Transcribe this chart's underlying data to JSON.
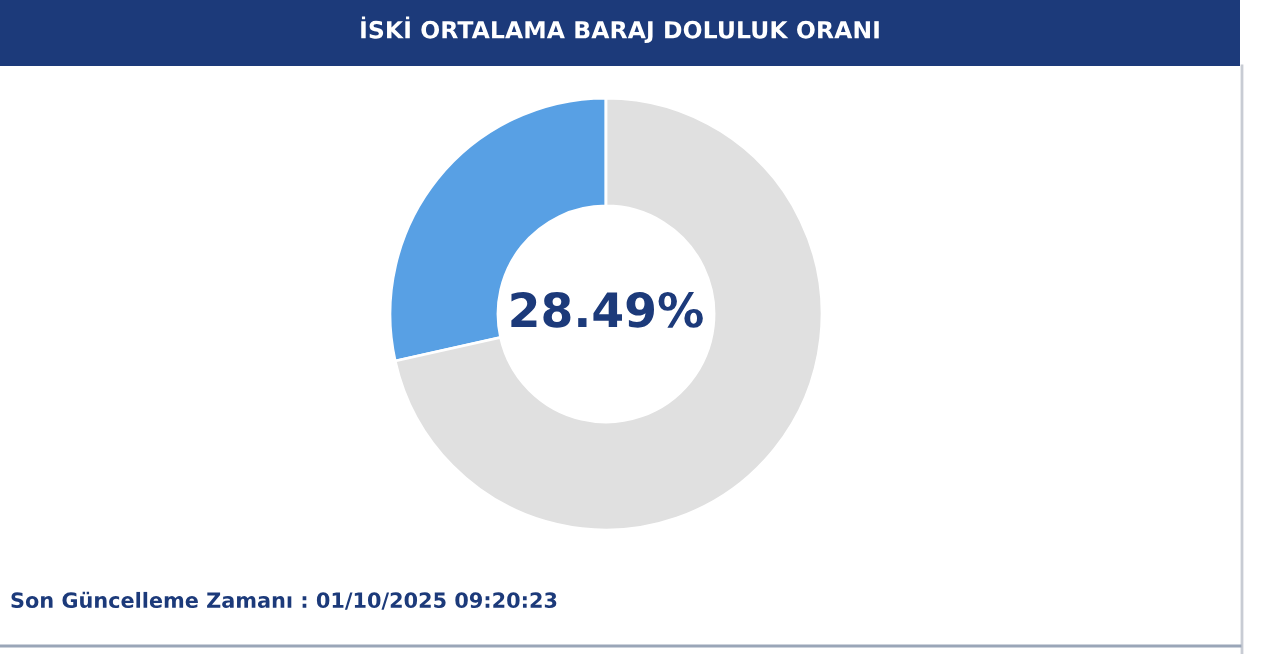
{
  "chart_data": {
    "type": "donut",
    "title": "İSKİ ORTALAMA BARAJ DOLULUK ORANI",
    "categories": [
      null,
      null
    ],
    "values": [
      28.49,
      71.51
    ],
    "colors": [
      "#58a0e4",
      "#e0e0e0"
    ],
    "annotations": [
      "28.49%",
      "Son Güncelleme Zamanı : 01/10/2025 09:20:23"
    ],
    "legend": false
  }
}
